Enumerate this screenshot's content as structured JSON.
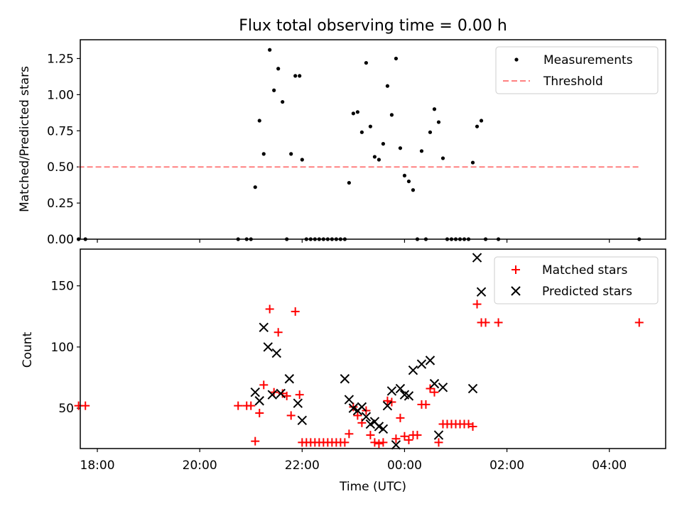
{
  "title": "Flux total observing time = 0.00 h",
  "chart_data": [
    {
      "type": "scatter",
      "ylabel": "Matched/Predicted stars",
      "ylim": [
        0,
        1.38
      ],
      "yticks": [
        0.0,
        0.25,
        0.5,
        0.75,
        1.0,
        1.25
      ],
      "ytick_labels": [
        "0.00",
        "0.25",
        "0.50",
        "0.75",
        "1.00",
        "1.25"
      ],
      "legend_position": "top-right",
      "threshold": {
        "name": "Threshold",
        "value": 0.5,
        "x_start": "17:38",
        "x_end": "04:35",
        "color": "#ff8080"
      },
      "series": [
        {
          "name": "Measurements",
          "color": "#000000",
          "marker": "dot",
          "points": [
            [
              "17:38",
              0.0
            ],
            [
              "17:46",
              0.0
            ],
            [
              "20:45",
              0.0
            ],
            [
              "20:55",
              0.0
            ],
            [
              "21:00",
              0.0
            ],
            [
              "21:05",
              0.36
            ],
            [
              "21:10",
              0.82
            ],
            [
              "21:15",
              0.59
            ],
            [
              "21:22",
              1.31
            ],
            [
              "21:27",
              1.03
            ],
            [
              "21:32",
              1.18
            ],
            [
              "21:37",
              0.95
            ],
            [
              "21:42",
              0.0
            ],
            [
              "21:47",
              0.59
            ],
            [
              "21:52",
              1.13
            ],
            [
              "21:57",
              1.13
            ],
            [
              "22:00",
              0.55
            ],
            [
              "22:05",
              0.0
            ],
            [
              "22:10",
              0.0
            ],
            [
              "22:15",
              0.0
            ],
            [
              "22:20",
              0.0
            ],
            [
              "22:25",
              0.0
            ],
            [
              "22:30",
              0.0
            ],
            [
              "22:35",
              0.0
            ],
            [
              "22:40",
              0.0
            ],
            [
              "22:45",
              0.0
            ],
            [
              "22:50",
              0.0
            ],
            [
              "22:55",
              0.39
            ],
            [
              "23:00",
              0.87
            ],
            [
              "23:05",
              0.88
            ],
            [
              "23:10",
              0.74
            ],
            [
              "23:15",
              1.22
            ],
            [
              "23:20",
              0.78
            ],
            [
              "23:25",
              0.57
            ],
            [
              "23:30",
              0.55
            ],
            [
              "23:35",
              0.66
            ],
            [
              "23:40",
              1.06
            ],
            [
              "23:45",
              0.86
            ],
            [
              "23:50",
              1.25
            ],
            [
              "23:55",
              0.63
            ],
            [
              "00:00",
              0.44
            ],
            [
              "00:05",
              0.4
            ],
            [
              "00:10",
              0.34
            ],
            [
              "00:15",
              0.0
            ],
            [
              "00:20",
              0.61
            ],
            [
              "00:25",
              0.0
            ],
            [
              "00:30",
              0.74
            ],
            [
              "00:35",
              0.9
            ],
            [
              "00:40",
              0.81
            ],
            [
              "00:45",
              0.56
            ],
            [
              "00:50",
              0.0
            ],
            [
              "00:55",
              0.0
            ],
            [
              "01:00",
              0.0
            ],
            [
              "01:05",
              0.0
            ],
            [
              "01:10",
              0.0
            ],
            [
              "01:15",
              0.0
            ],
            [
              "01:20",
              0.53
            ],
            [
              "01:25",
              0.78
            ],
            [
              "01:30",
              0.82
            ],
            [
              "01:35",
              0.0
            ],
            [
              "01:50",
              0.0
            ],
            [
              "04:35",
              0.0
            ]
          ]
        }
      ]
    },
    {
      "type": "scatter",
      "xlabel": "Time (UTC)",
      "ylabel": "Count",
      "ylim": [
        17,
        180
      ],
      "yticks": [
        50,
        100,
        150
      ],
      "ytick_labels": [
        "50",
        "100",
        "150"
      ],
      "xtick_labels": [
        "18:00",
        "20:00",
        "22:00",
        "00:00",
        "02:00",
        "04:00"
      ],
      "legend_position": "top-right",
      "series": [
        {
          "name": "Matched stars",
          "color": "#ff0000",
          "marker": "plus",
          "points": [
            [
              "17:38",
              52
            ],
            [
              "17:46",
              52
            ],
            [
              "20:45",
              52
            ],
            [
              "20:55",
              52
            ],
            [
              "21:00",
              52
            ],
            [
              "21:05",
              23
            ],
            [
              "21:10",
              46
            ],
            [
              "21:15",
              69
            ],
            [
              "21:22",
              131
            ],
            [
              "21:27",
              63
            ],
            [
              "21:32",
              112
            ],
            [
              "21:37",
              62
            ],
            [
              "21:42",
              60
            ],
            [
              "21:47",
              44
            ],
            [
              "21:52",
              129
            ],
            [
              "21:57",
              61
            ],
            [
              "22:00",
              22
            ],
            [
              "22:05",
              22
            ],
            [
              "22:10",
              22
            ],
            [
              "22:15",
              22
            ],
            [
              "22:20",
              22
            ],
            [
              "22:25",
              22
            ],
            [
              "22:30",
              22
            ],
            [
              "22:35",
              22
            ],
            [
              "22:40",
              22
            ],
            [
              "22:45",
              22
            ],
            [
              "22:50",
              22
            ],
            [
              "22:55",
              29
            ],
            [
              "23:00",
              51
            ],
            [
              "23:05",
              44
            ],
            [
              "23:10",
              38
            ],
            [
              "23:15",
              48
            ],
            [
              "23:20",
              28
            ],
            [
              "23:25",
              22
            ],
            [
              "23:30",
              21
            ],
            [
              "23:35",
              22
            ],
            [
              "23:40",
              56
            ],
            [
              "23:45",
              55
            ],
            [
              "23:50",
              25
            ],
            [
              "23:55",
              42
            ],
            [
              "00:00",
              27
            ],
            [
              "00:05",
              24
            ],
            [
              "00:10",
              28
            ],
            [
              "00:15",
              28
            ],
            [
              "00:20",
              53
            ],
            [
              "00:25",
              53
            ],
            [
              "00:30",
              66
            ],
            [
              "00:35",
              63
            ],
            [
              "00:40",
              22
            ],
            [
              "00:45",
              37
            ],
            [
              "00:50",
              37
            ],
            [
              "00:55",
              37
            ],
            [
              "01:00",
              37
            ],
            [
              "01:05",
              37
            ],
            [
              "01:10",
              37
            ],
            [
              "01:15",
              37
            ],
            [
              "01:20",
              35
            ],
            [
              "01:25",
              135
            ],
            [
              "01:30",
              120
            ],
            [
              "01:35",
              120
            ],
            [
              "01:50",
              120
            ],
            [
              "04:35",
              120
            ]
          ]
        },
        {
          "name": "Predicted stars",
          "color": "#000000",
          "marker": "x",
          "points": [
            [
              "21:05",
              63
            ],
            [
              "21:10",
              56
            ],
            [
              "21:15",
              116
            ],
            [
              "21:20",
              100
            ],
            [
              "21:25",
              61
            ],
            [
              "21:30",
              95
            ],
            [
              "21:35",
              62
            ],
            [
              "21:45",
              74
            ],
            [
              "21:55",
              54
            ],
            [
              "22:00",
              40
            ],
            [
              "22:50",
              74
            ],
            [
              "22:55",
              57
            ],
            [
              "23:00",
              50
            ],
            [
              "23:05",
              48
            ],
            [
              "23:10",
              51
            ],
            [
              "23:15",
              43
            ],
            [
              "23:20",
              37
            ],
            [
              "23:25",
              39
            ],
            [
              "23:30",
              35
            ],
            [
              "23:35",
              33
            ],
            [
              "23:40",
              52
            ],
            [
              "23:45",
              64
            ],
            [
              "23:50",
              20
            ],
            [
              "23:55",
              66
            ],
            [
              "00:00",
              61
            ],
            [
              "00:05",
              60
            ],
            [
              "00:10",
              81
            ],
            [
              "00:20",
              86
            ],
            [
              "00:30",
              89
            ],
            [
              "00:35",
              70
            ],
            [
              "00:40",
              28
            ],
            [
              "00:45",
              67
            ],
            [
              "01:20",
              66
            ],
            [
              "01:25",
              173
            ],
            [
              "01:30",
              145
            ]
          ]
        }
      ]
    }
  ]
}
